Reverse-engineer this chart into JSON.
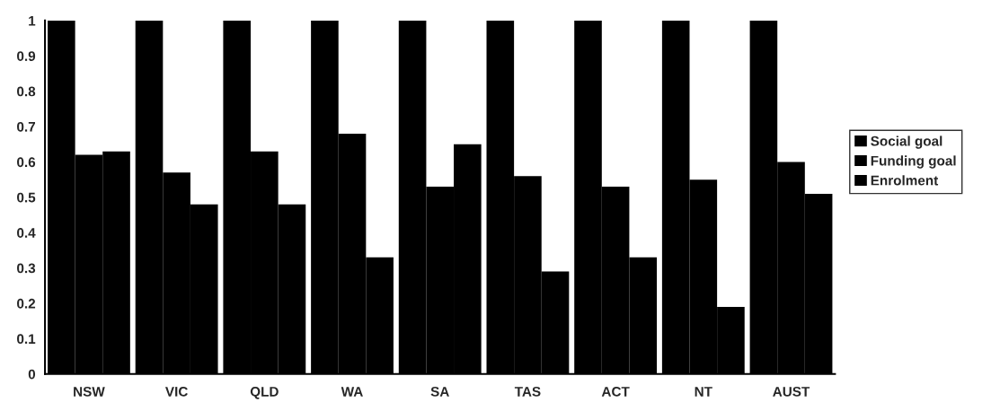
{
  "chart_data": {
    "type": "bar",
    "categories": [
      "NSW",
      "VIC",
      "QLD",
      "WA",
      "SA",
      "TAS",
      "ACT",
      "NT",
      "AUST"
    ],
    "series": [
      {
        "name": "Social goal",
        "color": "#000000",
        "values": [
          1,
          1,
          1,
          1,
          1,
          1,
          1,
          1,
          1
        ]
      },
      {
        "name": "Funding goal",
        "color": "#000000",
        "values": [
          0.62,
          0.57,
          0.63,
          0.68,
          0.53,
          0.56,
          0.53,
          0.55,
          0.6
        ]
      },
      {
        "name": "Enrolment",
        "color": "#000000",
        "values": [
          0.63,
          0.48,
          0.48,
          0.33,
          0.65,
          0.29,
          0.33,
          0.19,
          0.51
        ]
      }
    ],
    "ylim": [
      0,
      1
    ],
    "yticks": [
      0,
      {
        "value": 0.1,
        "label": "0.1"
      },
      {
        "value": 0.2,
        "label": "0.2"
      },
      {
        "value": 0.3,
        "label": "0.3"
      },
      {
        "value": 0.4,
        "label": "0.4"
      },
      {
        "value": 0.5,
        "label": "0.5"
      },
      {
        "value": 0.6,
        "label": "0.6"
      },
      {
        "value": 0.7,
        "label": "0.7"
      },
      {
        "value": 0.8,
        "label": "0.8"
      },
      {
        "value": 0.9,
        "label": "0.9"
      },
      1
    ],
    "grid": false,
    "legend": "right"
  }
}
